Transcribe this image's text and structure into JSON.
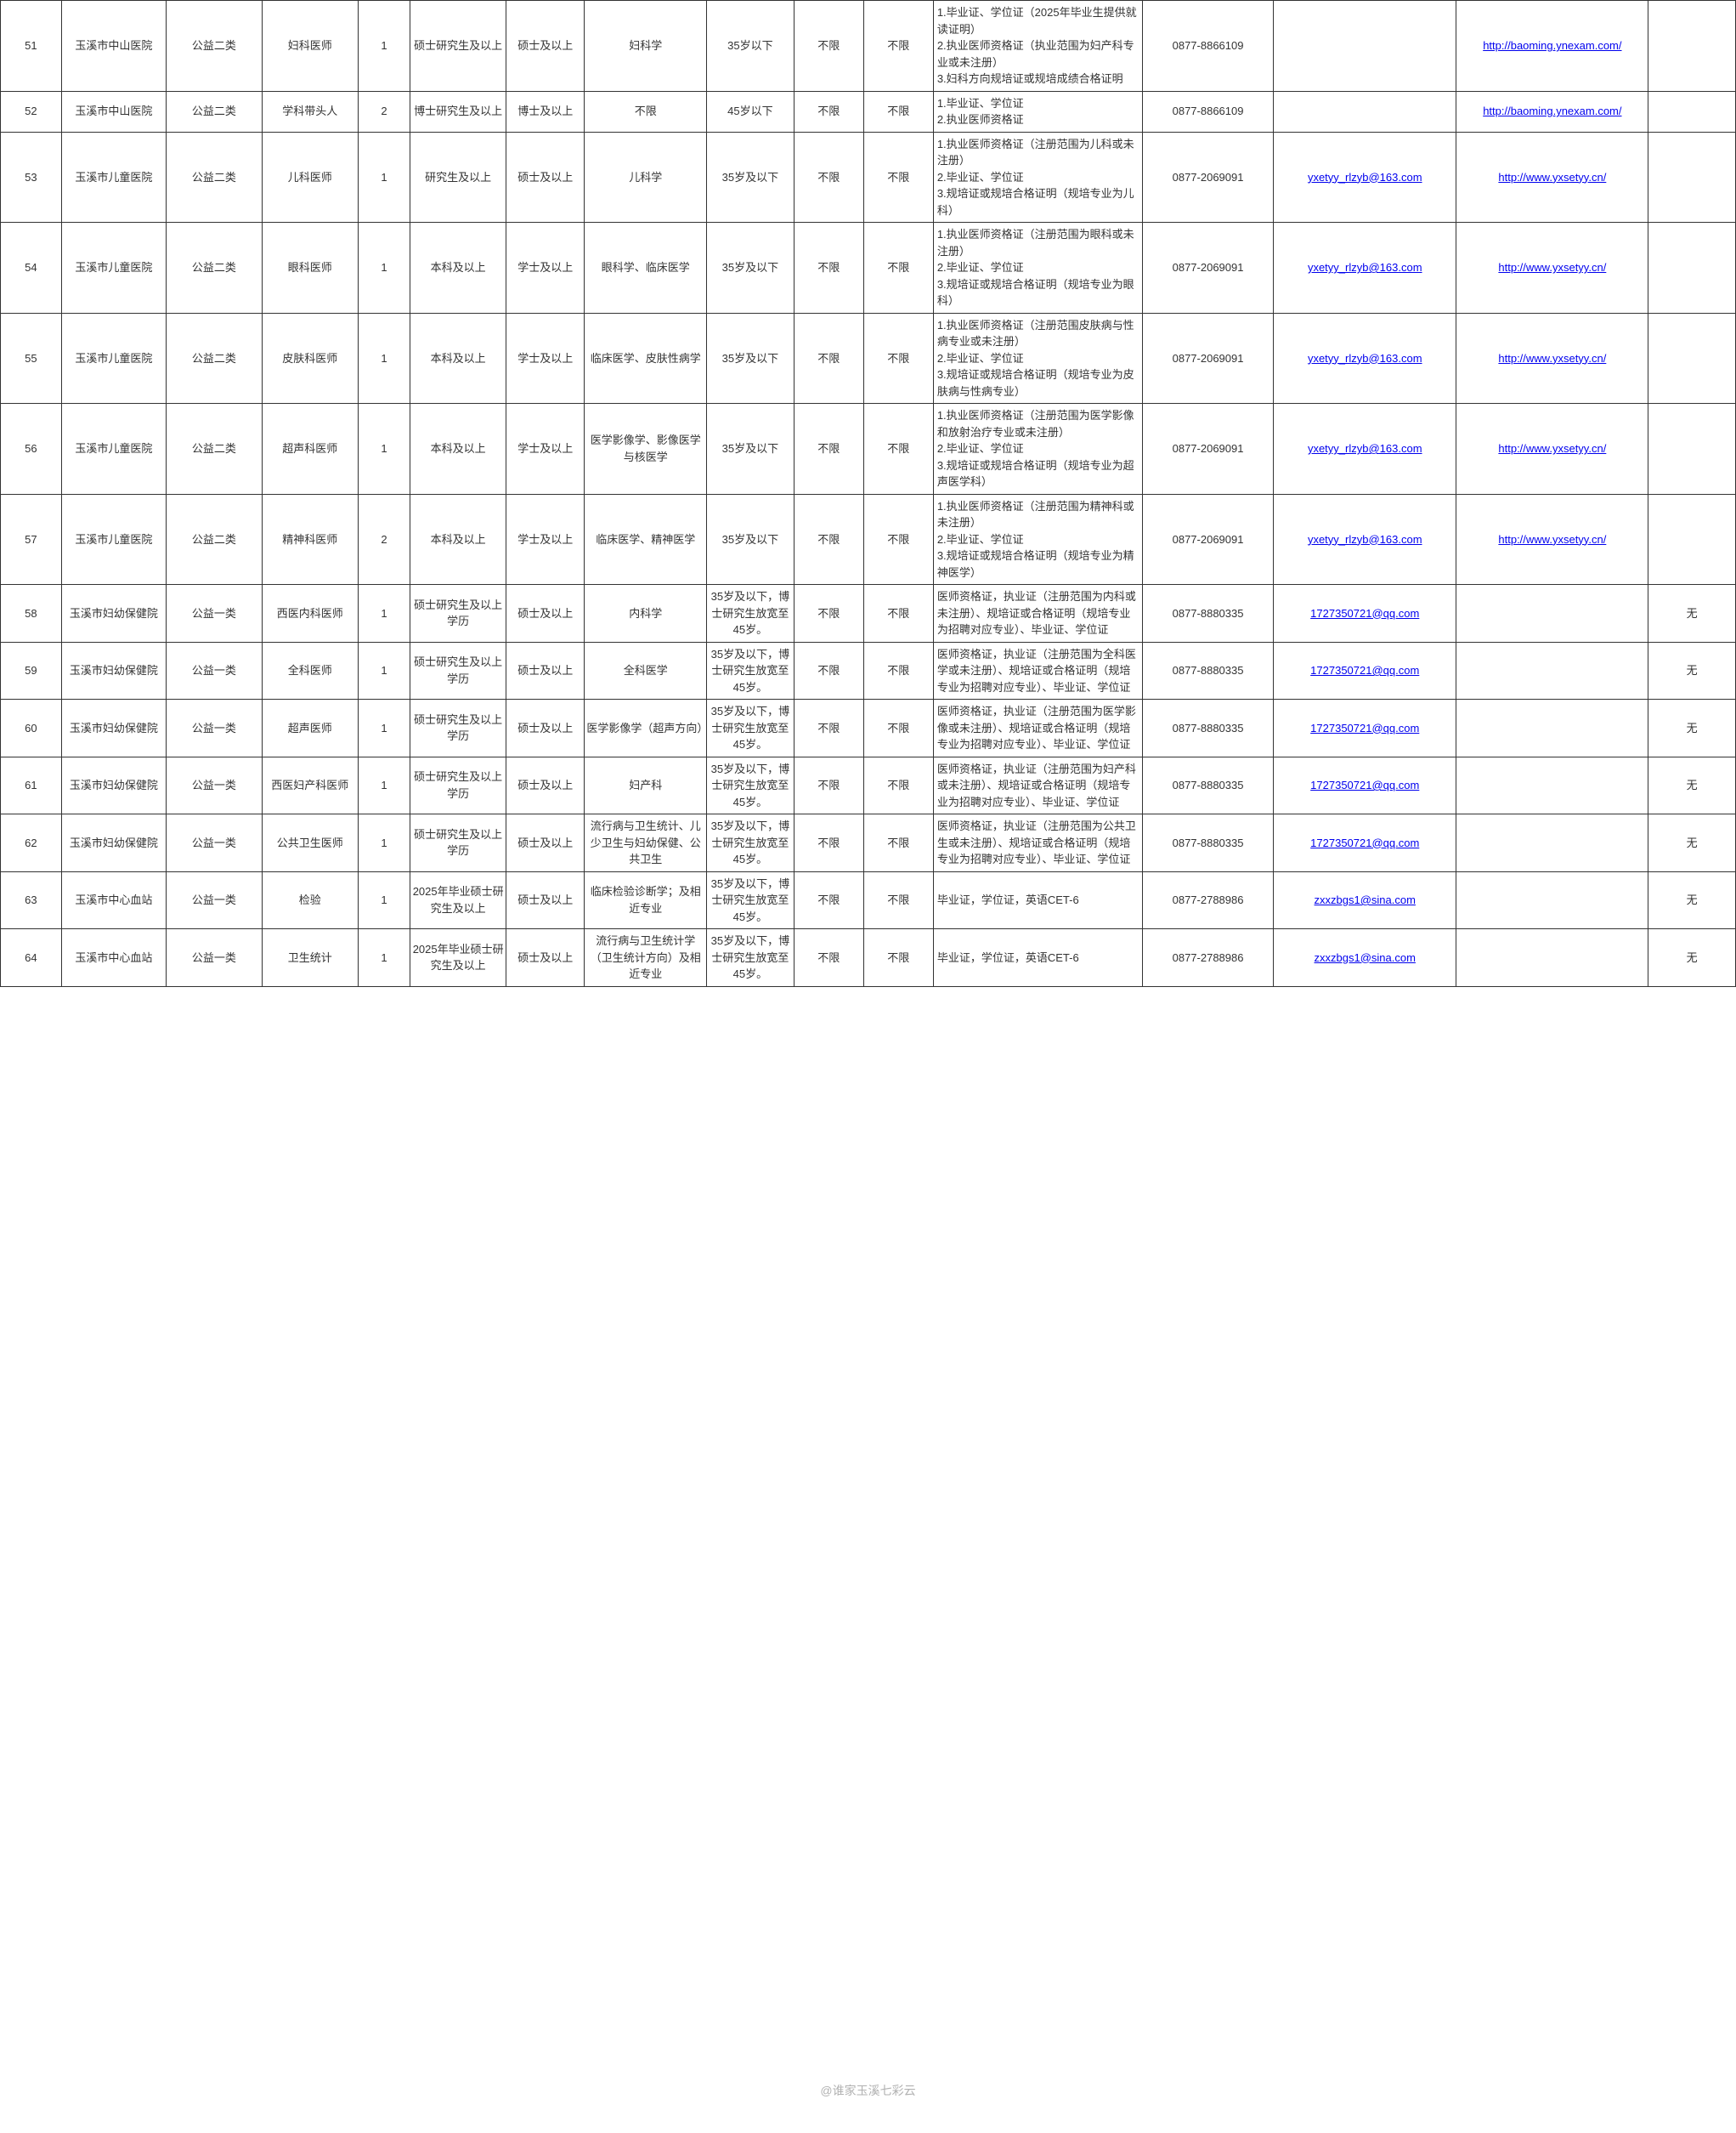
{
  "watermark": "@谁家玉溪七彩云",
  "rows": [
    {
      "seq": "51",
      "unit": "玉溪市中山医院",
      "type": "公益二类",
      "post": "妇科医师",
      "count": "1",
      "edu": "硕士研究生及以上",
      "degree": "硕士及以上",
      "major": "妇科学",
      "age": "35岁以下",
      "sex": "不限",
      "nation": "不限",
      "req": "1.毕业证、学位证（2025年毕业生提供就读证明）\n2.执业医师资格证（执业范围为妇产科专业或未注册）\n3.妇科方向规培证或规培成绩合格证明",
      "phone": "0877-8866109",
      "email": "",
      "website": "http://baoming.ynexam.com/",
      "remark": ""
    },
    {
      "seq": "52",
      "unit": "玉溪市中山医院",
      "type": "公益二类",
      "post": "学科带头人",
      "count": "2",
      "edu": "博士研究生及以上",
      "degree": "博士及以上",
      "major": "不限",
      "age": "45岁以下",
      "sex": "不限",
      "nation": "不限",
      "req": "1.毕业证、学位证\n2.执业医师资格证",
      "phone": "0877-8866109",
      "email": "",
      "website": "http://baoming.ynexam.com/",
      "remark": ""
    },
    {
      "seq": "53",
      "unit": "玉溪市儿童医院",
      "type": "公益二类",
      "post": "儿科医师",
      "count": "1",
      "edu": "研究生及以上",
      "degree": "硕士及以上",
      "major": "儿科学",
      "age": "35岁及以下",
      "sex": "不限",
      "nation": "不限",
      "req": "1.执业医师资格证（注册范围为儿科或未注册）\n2.毕业证、学位证\n3.规培证或规培合格证明（规培专业为儿科）",
      "phone": "0877-2069091",
      "email": "yxetyy_rlzyb@163.com",
      "website": "http://www.yxsetyy.cn/",
      "remark": ""
    },
    {
      "seq": "54",
      "unit": "玉溪市儿童医院",
      "type": "公益二类",
      "post": "眼科医师",
      "count": "1",
      "edu": "本科及以上",
      "degree": "学士及以上",
      "major": "眼科学、临床医学",
      "age": "35岁及以下",
      "sex": "不限",
      "nation": "不限",
      "req": "1.执业医师资格证（注册范围为眼科或未注册）\n2.毕业证、学位证\n3.规培证或规培合格证明（规培专业为眼科）",
      "phone": "0877-2069091",
      "email": "yxetyy_rlzyb@163.com",
      "website": "http://www.yxsetyy.cn/",
      "remark": ""
    },
    {
      "seq": "55",
      "unit": "玉溪市儿童医院",
      "type": "公益二类",
      "post": "皮肤科医师",
      "count": "1",
      "edu": "本科及以上",
      "degree": "学士及以上",
      "major": "临床医学、皮肤性病学",
      "age": "35岁及以下",
      "sex": "不限",
      "nation": "不限",
      "req": "1.执业医师资格证（注册范围皮肤病与性病专业或未注册）\n2.毕业证、学位证\n3.规培证或规培合格证明（规培专业为皮肤病与性病专业）",
      "phone": "0877-2069091",
      "email": "yxetyy_rlzyb@163.com",
      "website": "http://www.yxsetyy.cn/",
      "remark": ""
    },
    {
      "seq": "56",
      "unit": "玉溪市儿童医院",
      "type": "公益二类",
      "post": "超声科医师",
      "count": "1",
      "edu": "本科及以上",
      "degree": "学士及以上",
      "major": "医学影像学、影像医学与核医学",
      "age": "35岁及以下",
      "sex": "不限",
      "nation": "不限",
      "req": "1.执业医师资格证（注册范围为医学影像和放射治疗专业或未注册）\n2.毕业证、学位证\n3.规培证或规培合格证明（规培专业为超声医学科）",
      "phone": "0877-2069091",
      "email": "yxetyy_rlzyb@163.com",
      "website": "http://www.yxsetyy.cn/",
      "remark": ""
    },
    {
      "seq": "57",
      "unit": "玉溪市儿童医院",
      "type": "公益二类",
      "post": "精神科医师",
      "count": "2",
      "edu": "本科及以上",
      "degree": "学士及以上",
      "major": "临床医学、精神医学",
      "age": "35岁及以下",
      "sex": "不限",
      "nation": "不限",
      "req": "1.执业医师资格证（注册范围为精神科或未注册）\n2.毕业证、学位证\n3.规培证或规培合格证明（规培专业为精神医学）",
      "phone": "0877-2069091",
      "email": "yxetyy_rlzyb@163.com",
      "website": "http://www.yxsetyy.cn/",
      "remark": ""
    },
    {
      "seq": "58",
      "unit": "玉溪市妇幼保健院",
      "type": "公益一类",
      "post": "西医内科医师",
      "count": "1",
      "edu": "硕士研究生及以上学历",
      "degree": "硕士及以上",
      "major": "内科学",
      "age": "35岁及以下，博士研究生放宽至45岁。",
      "sex": "不限",
      "nation": "不限",
      "req": "医师资格证，执业证（注册范围为内科或未注册）、规培证或合格证明（规培专业为招聘对应专业）、毕业证、学位证",
      "phone": "0877-8880335",
      "email": "1727350721@qq.com",
      "website": "",
      "remark": "无"
    },
    {
      "seq": "59",
      "unit": "玉溪市妇幼保健院",
      "type": "公益一类",
      "post": "全科医师",
      "count": "1",
      "edu": "硕士研究生及以上学历",
      "degree": "硕士及以上",
      "major": "全科医学",
      "age": "35岁及以下，博士研究生放宽至45岁。",
      "sex": "不限",
      "nation": "不限",
      "req": "医师资格证，执业证（注册范围为全科医学或未注册）、规培证或合格证明（规培专业为招聘对应专业）、毕业证、学位证",
      "phone": "0877-8880335",
      "email": "1727350721@qq.com",
      "website": "",
      "remark": "无"
    },
    {
      "seq": "60",
      "unit": "玉溪市妇幼保健院",
      "type": "公益一类",
      "post": "超声医师",
      "count": "1",
      "edu": "硕士研究生及以上学历",
      "degree": "硕士及以上",
      "major": "医学影像学（超声方向）",
      "age": "35岁及以下，博士研究生放宽至45岁。",
      "sex": "不限",
      "nation": "不限",
      "req": "医师资格证，执业证（注册范围为医学影像或未注册）、规培证或合格证明（规培专业为招聘对应专业）、毕业证、学位证",
      "phone": "0877-8880335",
      "email": "1727350721@qq.com",
      "website": "",
      "remark": "无"
    },
    {
      "seq": "61",
      "unit": "玉溪市妇幼保健院",
      "type": "公益一类",
      "post": "西医妇产科医师",
      "count": "1",
      "edu": "硕士研究生及以上学历",
      "degree": "硕士及以上",
      "major": "妇产科",
      "age": "35岁及以下，博士研究生放宽至45岁。",
      "sex": "不限",
      "nation": "不限",
      "req": "医师资格证，执业证（注册范围为妇产科或未注册）、规培证或合格证明（规培专业为招聘对应专业）、毕业证、学位证",
      "phone": "0877-8880335",
      "email": "1727350721@qq.com",
      "website": "",
      "remark": "无"
    },
    {
      "seq": "62",
      "unit": "玉溪市妇幼保健院",
      "type": "公益一类",
      "post": "公共卫生医师",
      "count": "1",
      "edu": "硕士研究生及以上学历",
      "degree": "硕士及以上",
      "major": "流行病与卫生统计、儿少卫生与妇幼保健、公共卫生",
      "age": "35岁及以下，博士研究生放宽至45岁。",
      "sex": "不限",
      "nation": "不限",
      "req": "医师资格证，执业证（注册范围为公共卫生或未注册）、规培证或合格证明（规培专业为招聘对应专业）、毕业证、学位证",
      "phone": "0877-8880335",
      "email": "1727350721@qq.com",
      "website": "",
      "remark": "无"
    },
    {
      "seq": "63",
      "unit": "玉溪市中心血站",
      "type": "公益一类",
      "post": "检验",
      "count": "1",
      "edu": "2025年毕业硕士研究生及以上",
      "degree": "硕士及以上",
      "major": "临床检验诊断学；及相近专业",
      "age": "35岁及以下，博士研究生放宽至45岁。",
      "sex": "不限",
      "nation": "不限",
      "req": "毕业证，学位证，英语CET-6",
      "phone": "0877-2788986",
      "email": "zxxzbgs1@sina.com",
      "website": "",
      "remark": "无"
    },
    {
      "seq": "64",
      "unit": "玉溪市中心血站",
      "type": "公益一类",
      "post": "卫生统计",
      "count": "1",
      "edu": "2025年毕业硕士研究生及以上",
      "degree": "硕士及以上",
      "major": "流行病与卫生统计学（卫生统计方向）及相近专业",
      "age": "35岁及以下，博士研究生放宽至45岁。",
      "sex": "不限",
      "nation": "不限",
      "req": "毕业证，学位证，英语CET-6",
      "phone": "0877-2788986",
      "email": "zxxzbgs1@sina.com",
      "website": "",
      "remark": "无"
    }
  ]
}
